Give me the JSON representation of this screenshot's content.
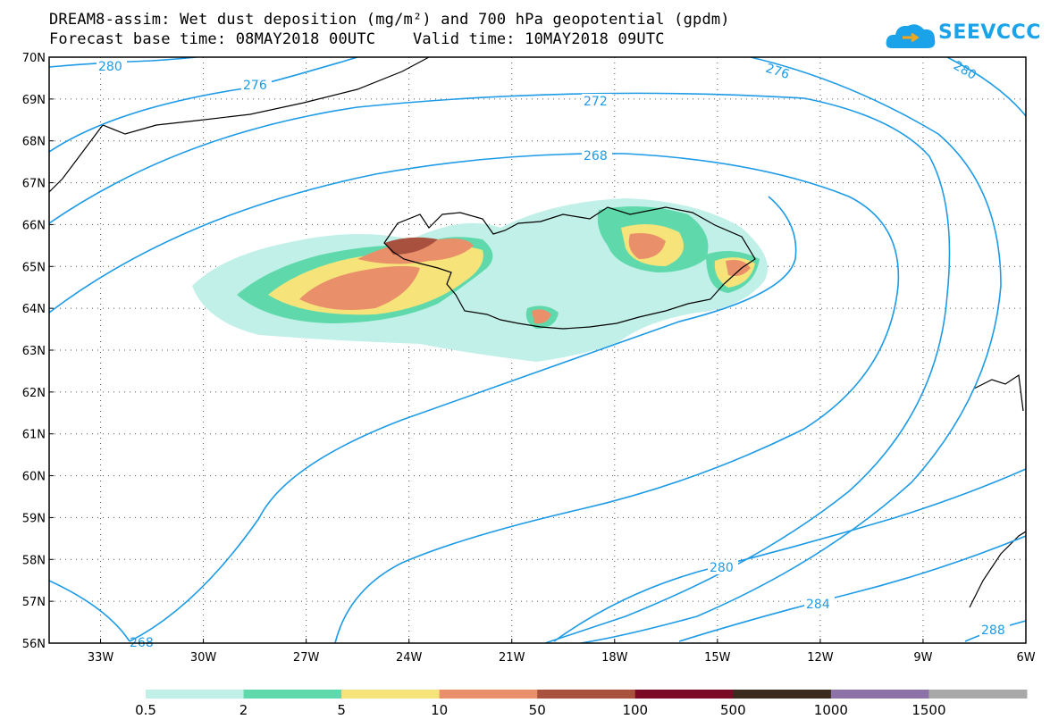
{
  "header": {
    "title_line1": "DREAM8-assim: Wet dust deposition (mg/m²) and 700 hPa geopotential (gpdm)",
    "title_line2": "Forecast base time: 08MAY2018 00UTC    Valid time: 10MAY2018 09UTC",
    "logo_text": "SEEVCCC"
  },
  "map": {
    "lat_labels": [
      "70N",
      "69N",
      "68N",
      "67N",
      "66N",
      "65N",
      "64N",
      "63N",
      "62N",
      "61N",
      "60N",
      "59N",
      "58N",
      "57N",
      "56N"
    ],
    "lon_labels": [
      "33W",
      "30W",
      "27W",
      "24W",
      "21W",
      "18W",
      "15W",
      "12W",
      "9W",
      "6W"
    ],
    "lat_range": [
      56,
      70
    ],
    "lon_range": [
      -34.5,
      -6
    ],
    "grid": "dotted",
    "contour_color": "#1e9be6",
    "contour_labels": [
      "280",
      "276",
      "272",
      "268",
      "280",
      "284",
      "288",
      "276",
      "280",
      "268"
    ]
  },
  "legend": {
    "labels": [
      "0.5",
      "2",
      "5",
      "10",
      "50",
      "100",
      "500",
      "1000",
      "1500"
    ],
    "colors": [
      "#c1f0e8",
      "#5fd9ab",
      "#f6e47a",
      "#e9906a",
      "#a8513e",
      "#7a0a26",
      "#3b2a1e",
      "#8d72a8",
      "#a8a8a8"
    ]
  }
}
